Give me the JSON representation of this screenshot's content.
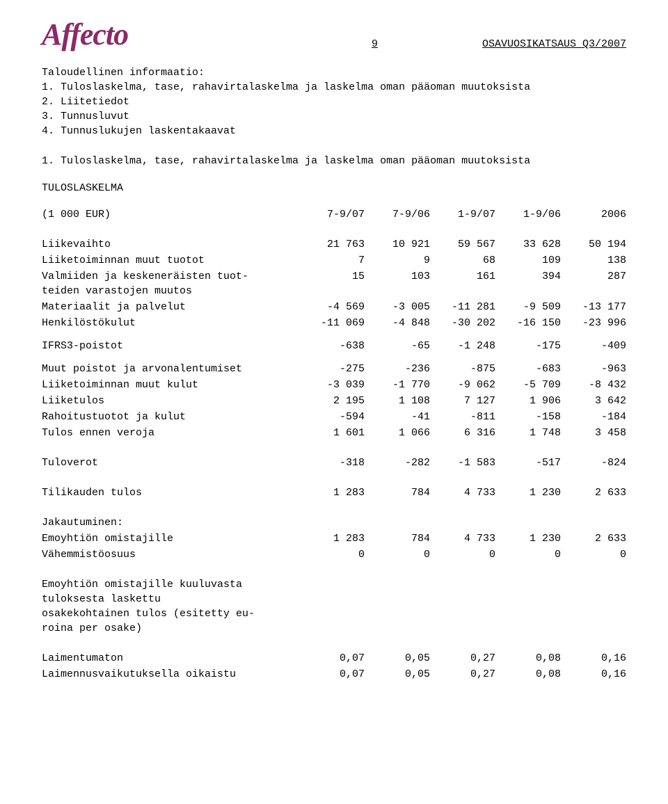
{
  "header": {
    "logo": "Affecto",
    "page_number": "9",
    "title": "OSAVUOSIKATSAUS Q3/2007",
    "logo_color": "#8a2a6a"
  },
  "intro": {
    "heading": "Taloudellinen informaatio:",
    "items": [
      "1. Tuloslaskelma, tase, rahavirtalaskelma ja laskelma oman pääoman muutoksista",
      "2. Liitetiedot",
      "3. Tunnusluvut",
      "4. Tunnuslukujen laskentakaavat"
    ]
  },
  "section1": {
    "heading": "1. Tuloslaskelma, tase, rahavirtalaskelma ja laskelma oman pääoman muutoksista",
    "subheading": "TULOSLASKELMA",
    "unit_label": "(1 000 EUR)",
    "columns": [
      "7-9/07",
      "7-9/06",
      "1-9/07",
      "1-9/06",
      "2006"
    ],
    "rows": [
      {
        "label": "Liikevaihto",
        "v": [
          "21 763",
          "10 921",
          "59 567",
          "33 628",
          "50 194"
        ]
      },
      {
        "label": "Liiketoiminnan muut tuotot",
        "v": [
          "7",
          "9",
          "68",
          "109",
          "138"
        ]
      },
      {
        "label": "Valmiiden ja keskeneräisten tuot-\nteiden varastojen muutos",
        "v": [
          "15",
          "103",
          "161",
          "394",
          "287"
        ]
      },
      {
        "label": "Materiaalit ja palvelut",
        "v": [
          "-4 569",
          "-3 005",
          "-11 281",
          "-9 509",
          "-13 177"
        ]
      },
      {
        "label": "Henkilöstökulut",
        "v": [
          "-11 069",
          "-4 848",
          "-30 202",
          "-16 150",
          "-23 996"
        ]
      }
    ],
    "rows2": [
      {
        "label": "IFRS3-poistot",
        "v": [
          "-638",
          "-65",
          "-1 248",
          "-175",
          "-409"
        ]
      }
    ],
    "rows3": [
      {
        "label": "Muut poistot ja arvonalentumiset",
        "v": [
          "-275",
          "-236",
          "-875",
          "-683",
          "-963"
        ]
      },
      {
        "label": "Liiketoiminnan muut kulut",
        "v": [
          "-3 039",
          "-1 770",
          "-9 062",
          "-5 709",
          "-8 432"
        ]
      },
      {
        "label": "Liiketulos",
        "v": [
          "2 195",
          "1 108",
          "7 127",
          "1 906",
          "3 642"
        ]
      },
      {
        "label": "Rahoitustuotot ja kulut",
        "v": [
          "-594",
          "-41",
          "-811",
          "-158",
          "-184"
        ]
      },
      {
        "label": "Tulos ennen veroja",
        "v": [
          "1 601",
          "1 066",
          "6 316",
          "1 748",
          "3 458"
        ]
      }
    ],
    "rows4": [
      {
        "label": "Tuloverot",
        "v": [
          "-318",
          "-282",
          "-1 583",
          "-517",
          "-824"
        ]
      }
    ],
    "rows5": [
      {
        "label": "Tilikauden tulos",
        "v": [
          "1 283",
          "784",
          "4 733",
          "1 230",
          "2 633"
        ]
      }
    ],
    "dist_heading": "Jakautuminen:",
    "rows6": [
      {
        "label": "Emoyhtiön omistajille",
        "v": [
          "1 283",
          "784",
          "4 733",
          "1 230",
          "2 633"
        ]
      },
      {
        "label": "Vähemmistöosuus",
        "v": [
          "0",
          "0",
          "0",
          "0",
          "0"
        ]
      }
    ],
    "eps_heading": "Emoyhtiön omistajille kuuluvasta\ntuloksesta laskettu\nosakekohtainen tulos (esitetty eu-\nroina per osake)",
    "rows7": [
      {
        "label": "Laimentumaton",
        "v": [
          "0,07",
          "0,05",
          "0,27",
          "0,08",
          "0,16"
        ]
      },
      {
        "label": "Laimennusvaikutuksella oikaistu",
        "v": [
          "0,07",
          "0,05",
          "0,27",
          "0,08",
          "0,16"
        ]
      }
    ]
  }
}
